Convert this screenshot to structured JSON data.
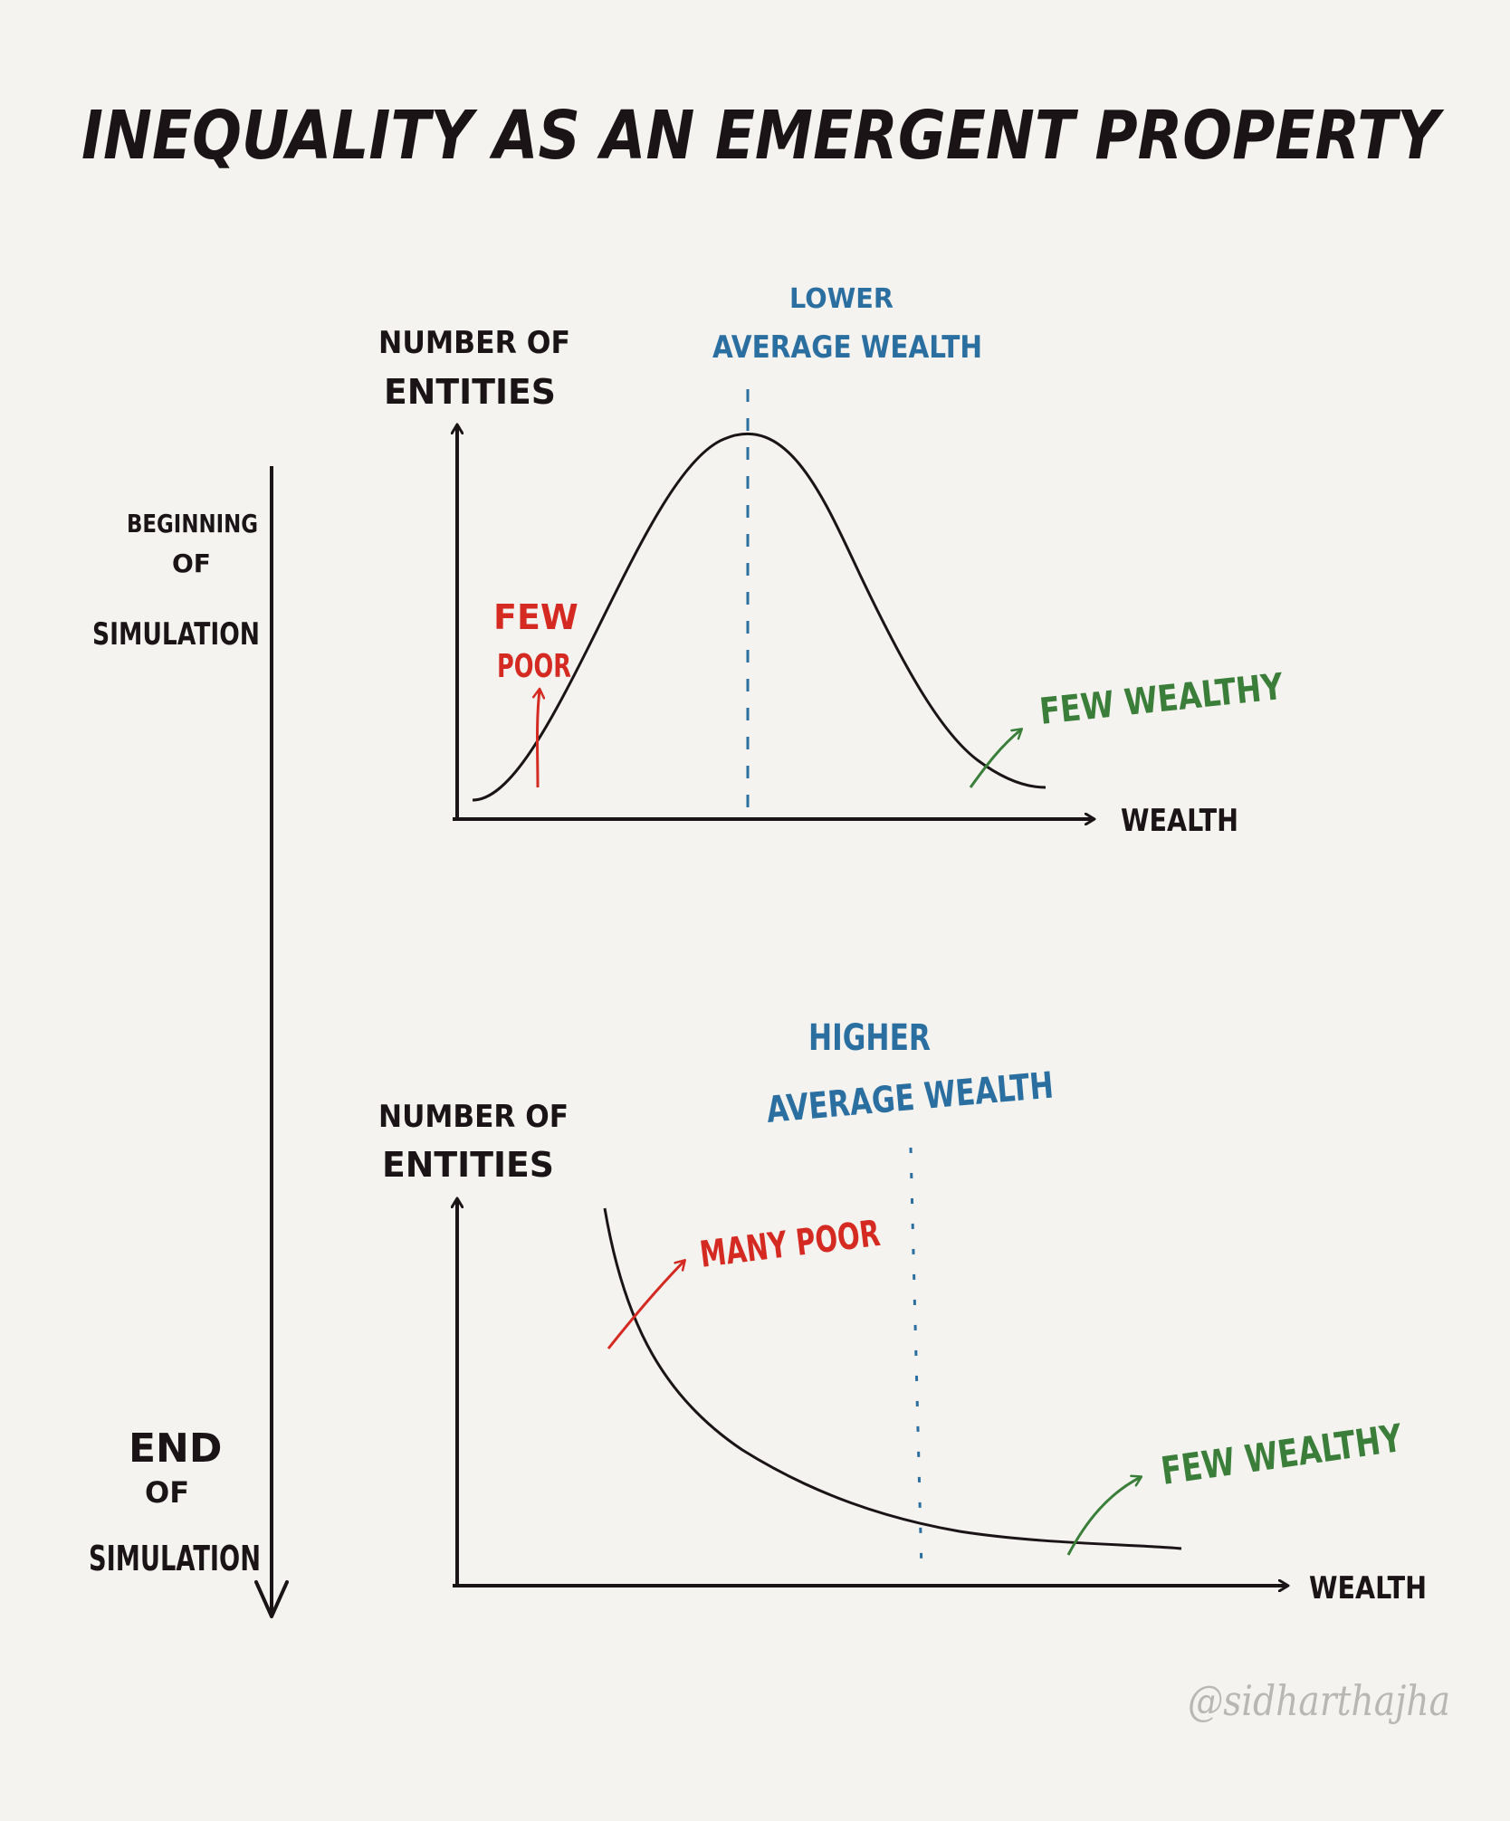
{
  "title": "INEQUALITY AS AN EMERGENT PROPERTY",
  "timeline": {
    "start_label": [
      "BEGINNING",
      "OF",
      "SIMULATION"
    ],
    "end_label": [
      "END",
      "OF",
      "SIMULATION"
    ]
  },
  "top_chart": {
    "y_label": [
      "NUMBER OF",
      "ENTITIES"
    ],
    "x_label": "WEALTH",
    "mean_label": [
      "LOWER",
      "AVERAGE WEALTH"
    ],
    "poor_label": [
      "FEW",
      "POOR"
    ],
    "rich_label": "FEW WEALTHY"
  },
  "bottom_chart": {
    "y_label": [
      "NUMBER OF",
      "ENTITIES"
    ],
    "x_label": "WEALTH",
    "mean_label": [
      "HIGHER",
      "AVERAGE WEALTH"
    ],
    "poor_label": "MANY POOR",
    "rich_label": "FEW WEALTHY"
  },
  "signature": "@sidharthajha",
  "colors": {
    "ink": "#1a1416",
    "blue": "#2a6fa0",
    "red": "#d42a22",
    "green": "#3a7e3a",
    "signature": "#b9b7b3"
  }
}
